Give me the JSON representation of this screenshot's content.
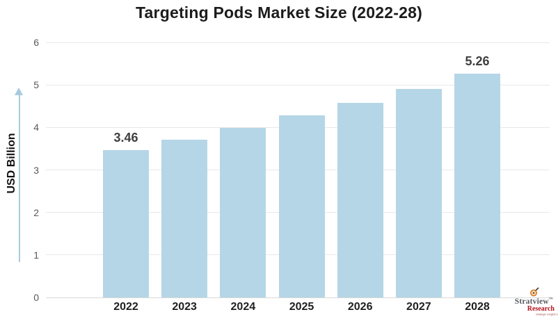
{
  "title": "Targeting Pods Market Size (2022-28)",
  "y_axis": {
    "label": "USD Billion",
    "ticks": [
      0,
      1,
      2,
      3,
      4,
      5,
      6
    ]
  },
  "chart_data": {
    "type": "bar",
    "title": "Targeting Pods Market Size (2022-28)",
    "categories": [
      "2022",
      "2023",
      "2024",
      "2025",
      "2026",
      "2027",
      "2028"
    ],
    "values": [
      3.46,
      3.71,
      3.99,
      4.28,
      4.58,
      4.91,
      5.26
    ],
    "data_labels": [
      "3.46",
      null,
      null,
      null,
      null,
      null,
      "5.26"
    ],
    "xlabel": "",
    "ylabel": "USD Billion",
    "ylim": [
      0,
      6
    ],
    "grid": true,
    "legend": "none",
    "bar_color": "#b5d6e6"
  },
  "colors": {
    "bar": "#b5d6e6",
    "gridline": "#e8e8e8",
    "baseline": "#d9d9d9",
    "title_text": "#1c1c1c",
    "tick_text": "#595959",
    "year_text": "#1f1f1f",
    "value_label_text": "#3f3f3f",
    "axis_arrow": "#a6cbe0",
    "logo_gray": "#55595e",
    "logo_red": "#b5121b"
  },
  "branding": {
    "name": "Stratview",
    "trademark": "™",
    "division": "Research",
    "tagline": "Strategic Insights Delivered"
  }
}
